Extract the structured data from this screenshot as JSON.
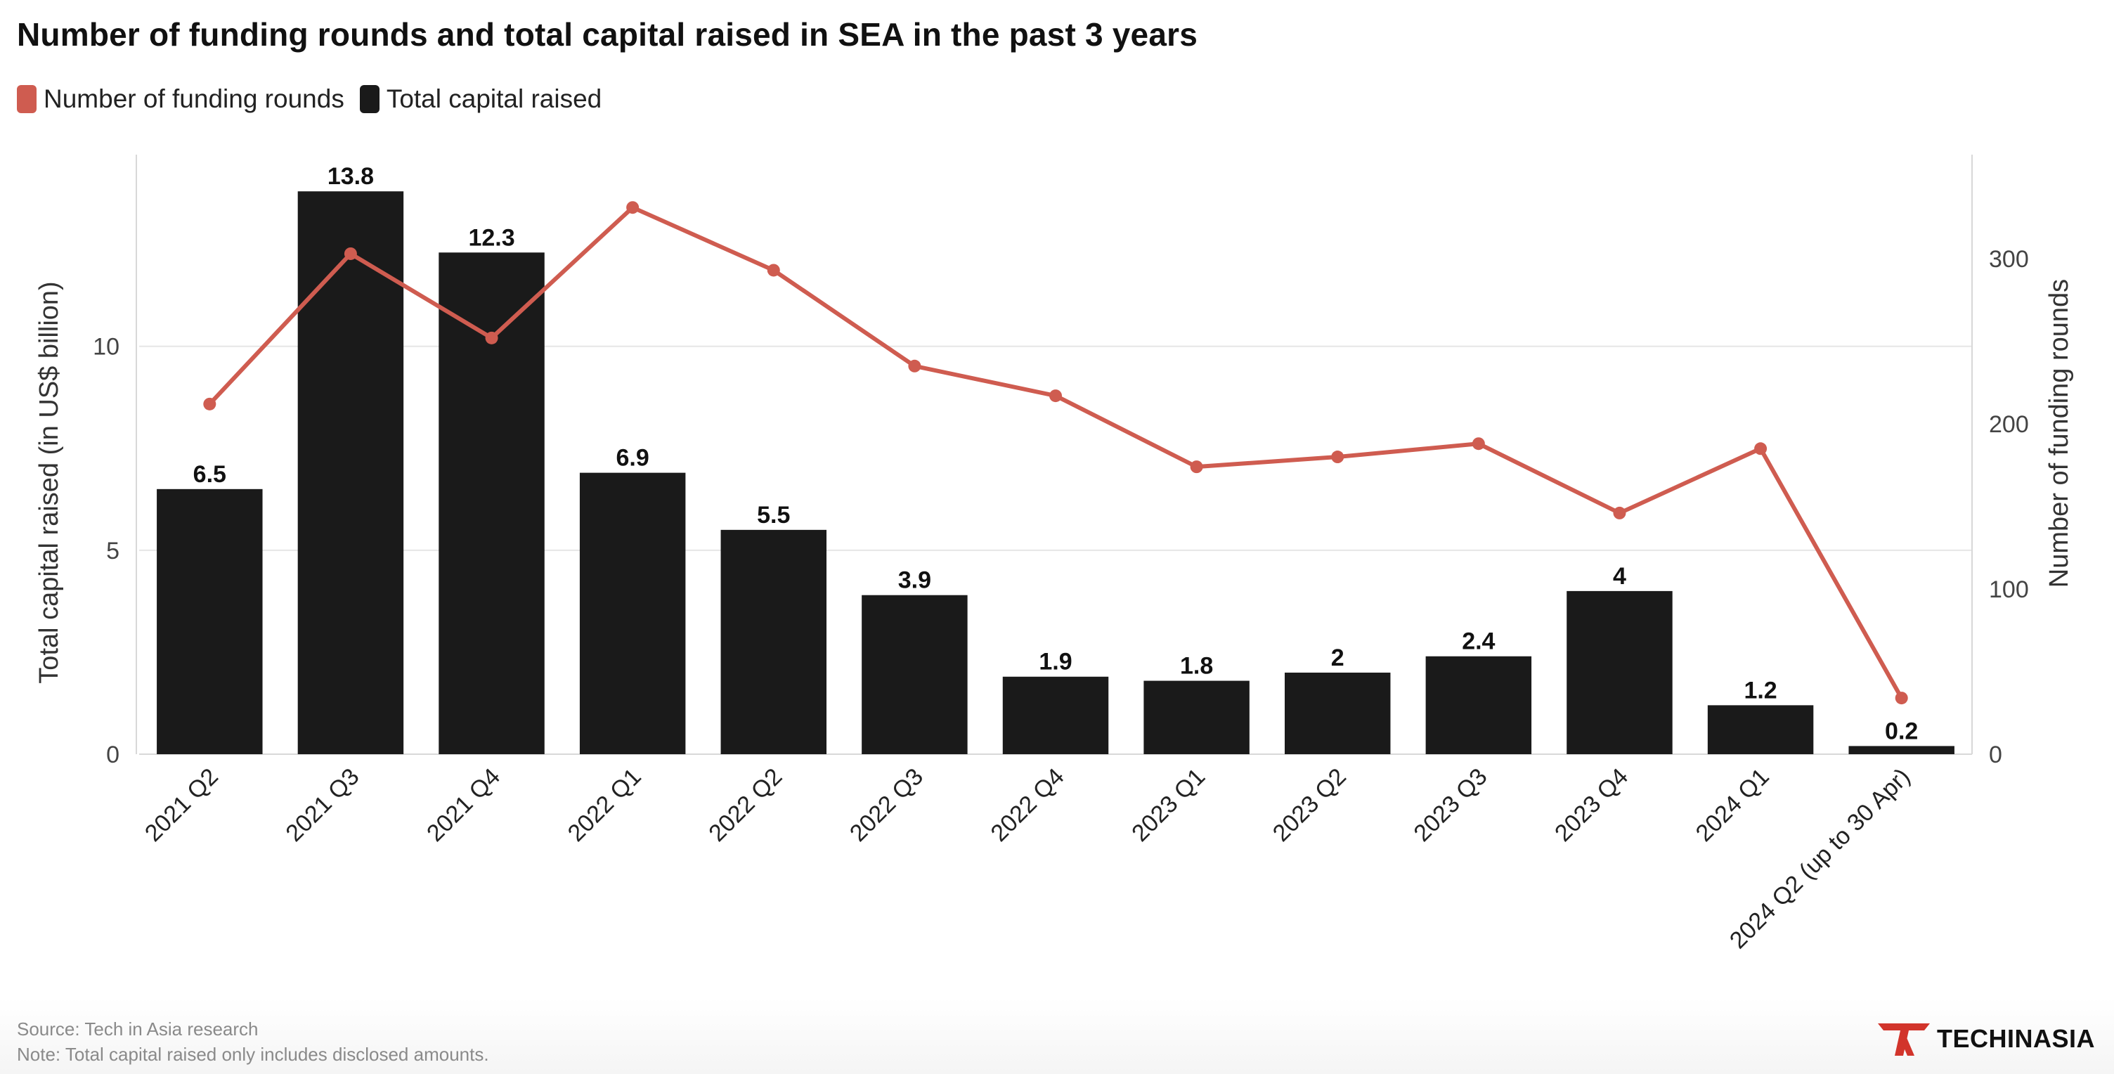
{
  "title": "Number of funding rounds and total capital raised in SEA in the past 3 years",
  "legend": {
    "rounds": "Number of funding rounds",
    "capital": "Total capital raised"
  },
  "colors": {
    "bar": "#1a1a1a",
    "line": "#cf5c50",
    "grid": "#e6e6e6",
    "axis": "#555555"
  },
  "footer": {
    "source": "Source: Tech in Asia research",
    "note": "Note: Total capital raised only includes disclosed amounts."
  },
  "logo": {
    "text": "TECHINASIA"
  },
  "chart_data": {
    "type": "bar",
    "title": "Number of funding rounds and total capital raised in SEA in the past 3 years",
    "categories": [
      "2021 Q2",
      "2021 Q3",
      "2021 Q4",
      "2022 Q1",
      "2022 Q2",
      "2022 Q3",
      "2022 Q4",
      "2023 Q1",
      "2023 Q2",
      "2023 Q3",
      "2023 Q4",
      "2024 Q1",
      "2024 Q2 (up to 30 Apr)"
    ],
    "series": [
      {
        "name": "Total capital raised",
        "type": "bar",
        "axis": "left",
        "values": [
          6.5,
          13.8,
          12.3,
          6.9,
          5.5,
          3.9,
          1.9,
          1.8,
          2,
          2.4,
          4,
          1.2,
          0.2
        ],
        "labels": [
          "6.5",
          "13.8",
          "12.3",
          "6.9",
          "5.5",
          "3.9",
          "1.9",
          "1.8",
          "2",
          "2.4",
          "4",
          "1.2",
          "0.2"
        ]
      },
      {
        "name": "Number of funding rounds",
        "type": "line",
        "axis": "right",
        "values": [
          212,
          303,
          252,
          331,
          293,
          235,
          217,
          174,
          180,
          188,
          146,
          185,
          34
        ]
      }
    ],
    "ylabel": "Total capital raised (in US$ billion)",
    "y2label": "Number of funding rounds",
    "ylim": [
      0,
      14.7
    ],
    "y2lim": [
      0,
      363
    ],
    "yticks": [
      0,
      5,
      10
    ],
    "y2ticks": [
      0,
      100,
      200,
      300
    ],
    "grid": true
  }
}
